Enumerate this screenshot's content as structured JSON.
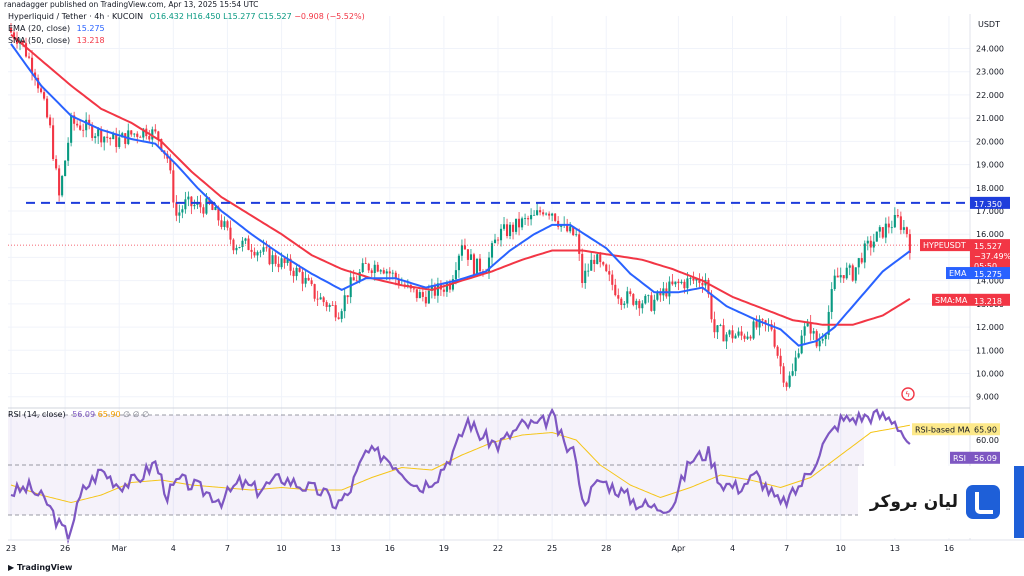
{
  "header": {
    "published": "ranadagger published on TradingView.com, Apr 13, 2025 15:54 UTC",
    "symbol": "Hyperliquid / Tether · 4h · KUCOIN",
    "open": "O16.432",
    "high": "H16.450",
    "low": "L15.277",
    "close": "C15.527",
    "change": "−0.908 (−5.52%)"
  },
  "legends": {
    "ema": {
      "label": "EMA (20, close)",
      "value": "15.275"
    },
    "sma": {
      "label": "SMA (50, close)",
      "value": "13.218"
    },
    "rsi": {
      "label": "RSI (14, close)",
      "value": "56.09",
      "extra": "65.90",
      "icons": "∅ ∅ ∅"
    }
  },
  "currency": "USDT",
  "price_labels": {
    "level": "17.350",
    "symbol": "HYPEUSDT",
    "price": "15.527",
    "pct": "−37.49%",
    "timer": "05:50",
    "ema_tag": "EMA",
    "ema_val": "15.275",
    "sma_tag": "SMA:MA",
    "sma_val": "13.218"
  },
  "rsi_labels": {
    "ma_tag": "RSI-based MA",
    "ma_val": "65.90",
    "rsi_tag": "RSI",
    "rsi_val": "56.09"
  },
  "footer": {
    "brand": "TradingView"
  },
  "watermark": {
    "text": "لیان بروکر"
  },
  "colors": {
    "up": "#089981",
    "down": "#f23645",
    "ema": "#2962ff",
    "sma": "#f23645",
    "rsi": "#7e57c2",
    "rsi_ma": "#f5c518",
    "level": "#1e3ddb"
  },
  "chart_data": [
    {
      "type": "candlestick",
      "title": "Hyperliquid / Tether · 4h · KUCOIN",
      "ylabel": "USDT",
      "ylim": [
        8.6,
        25.4
      ],
      "y_ticks": [
        "24.000",
        "23.000",
        "22.000",
        "21.000",
        "20.000",
        "19.000",
        "18.000",
        "17.000",
        "16.000",
        "15.000",
        "14.000",
        "13.000",
        "12.000",
        "11.000",
        "10.000",
        "9.000"
      ],
      "x_ticks": [
        {
          "label": "23",
          "i": 0
        },
        {
          "label": "26",
          "i": 18
        },
        {
          "label": "Mar",
          "i": 36
        },
        {
          "label": "4",
          "i": 54
        },
        {
          "label": "7",
          "i": 72
        },
        {
          "label": "10",
          "i": 90
        },
        {
          "label": "13",
          "i": 108
        },
        {
          "label": "16",
          "i": 126
        },
        {
          "label": "19",
          "i": 144
        },
        {
          "label": "22",
          "i": 162
        },
        {
          "label": "25",
          "i": 180
        },
        {
          "label": "28",
          "i": 198
        },
        {
          "label": "Apr",
          "i": 222
        },
        {
          "label": "4",
          "i": 240
        },
        {
          "label": "7",
          "i": 258
        },
        {
          "label": "10",
          "i": 276
        },
        {
          "label": "13",
          "i": 294
        },
        {
          "label": "16",
          "i": 312
        }
      ],
      "x_count": 318,
      "anchors_close": [
        [
          0,
          24.7
        ],
        [
          3,
          24.4
        ],
        [
          8,
          23.0
        ],
        [
          13,
          20.5
        ],
        [
          16,
          17.6
        ],
        [
          20,
          20.8
        ],
        [
          25,
          20.6
        ],
        [
          30,
          20.3
        ],
        [
          35,
          20.0
        ],
        [
          40,
          20.3
        ],
        [
          45,
          20.5
        ],
        [
          49,
          20.2
        ],
        [
          52,
          19.3
        ],
        [
          55,
          16.8
        ],
        [
          58,
          17.3
        ],
        [
          62,
          17.2
        ],
        [
          66,
          17.2
        ],
        [
          70,
          16.5
        ],
        [
          74,
          15.6
        ],
        [
          80,
          15.5
        ],
        [
          86,
          15.0
        ],
        [
          91,
          14.7
        ],
        [
          96,
          14.3
        ],
        [
          101,
          13.4
        ],
        [
          106,
          12.9
        ],
        [
          109,
          12.7
        ],
        [
          113,
          13.8
        ],
        [
          118,
          14.6
        ],
        [
          123,
          14.7
        ],
        [
          128,
          14.1
        ],
        [
          133,
          13.5
        ],
        [
          137,
          13.3
        ],
        [
          142,
          13.6
        ],
        [
          146,
          13.9
        ],
        [
          150,
          15.7
        ],
        [
          154,
          14.6
        ],
        [
          158,
          14.6
        ],
        [
          162,
          16.0
        ],
        [
          166,
          16.2
        ],
        [
          170,
          16.5
        ],
        [
          174,
          16.7
        ],
        [
          177,
          17.1
        ],
        [
          180,
          17.0
        ],
        [
          184,
          16.2
        ],
        [
          188,
          15.9
        ],
        [
          190,
          14.0
        ],
        [
          194,
          15.0
        ],
        [
          198,
          14.2
        ],
        [
          203,
          13.3
        ],
        [
          208,
          13.2
        ],
        [
          213,
          13.0
        ],
        [
          218,
          13.6
        ],
        [
          223,
          13.9
        ],
        [
          227,
          14.0
        ],
        [
          231,
          14.1
        ],
        [
          234,
          11.8
        ],
        [
          238,
          11.7
        ],
        [
          243,
          11.6
        ],
        [
          248,
          12.0
        ],
        [
          253,
          12.0
        ],
        [
          256,
          10.3
        ],
        [
          258,
          9.6
        ],
        [
          260,
          10.0
        ],
        [
          263,
          11.8
        ],
        [
          266,
          12.0
        ],
        [
          268,
          11.2
        ],
        [
          271,
          12.0
        ],
        [
          274,
          14.0
        ],
        [
          277,
          14.4
        ],
        [
          280,
          14.3
        ],
        [
          283,
          15.1
        ],
        [
          286,
          15.6
        ],
        [
          289,
          16.0
        ],
        [
          292,
          16.4
        ],
        [
          295,
          16.6
        ],
        [
          298,
          16.1
        ],
        [
          299,
          15.53
        ]
      ],
      "ema_anchors": [
        [
          0,
          24.2
        ],
        [
          10,
          22.4
        ],
        [
          20,
          21.1
        ],
        [
          30,
          20.5
        ],
        [
          40,
          20.1
        ],
        [
          48,
          19.9
        ],
        [
          55,
          19.0
        ],
        [
          62,
          18.0
        ],
        [
          70,
          17.0
        ],
        [
          80,
          16.0
        ],
        [
          90,
          15.1
        ],
        [
          100,
          14.3
        ],
        [
          110,
          13.6
        ],
        [
          118,
          14.1
        ],
        [
          128,
          14.1
        ],
        [
          138,
          13.7
        ],
        [
          148,
          14.0
        ],
        [
          158,
          14.4
        ],
        [
          166,
          15.3
        ],
        [
          174,
          16.0
        ],
        [
          180,
          16.4
        ],
        [
          186,
          16.4
        ],
        [
          192,
          15.9
        ],
        [
          198,
          15.4
        ],
        [
          206,
          14.3
        ],
        [
          214,
          13.5
        ],
        [
          222,
          13.5
        ],
        [
          230,
          13.7
        ],
        [
          238,
          12.9
        ],
        [
          248,
          12.3
        ],
        [
          256,
          11.9
        ],
        [
          262,
          11.2
        ],
        [
          268,
          11.4
        ],
        [
          274,
          12.0
        ],
        [
          282,
          13.2
        ],
        [
          290,
          14.4
        ],
        [
          299,
          15.275
        ]
      ],
      "sma_anchors": [
        [
          0,
          24.6
        ],
        [
          10,
          23.5
        ],
        [
          20,
          22.4
        ],
        [
          30,
          21.4
        ],
        [
          40,
          20.8
        ],
        [
          50,
          20.0
        ],
        [
          60,
          18.7
        ],
        [
          70,
          17.6
        ],
        [
          80,
          16.8
        ],
        [
          90,
          16.0
        ],
        [
          100,
          15.1
        ],
        [
          110,
          14.5
        ],
        [
          120,
          14.1
        ],
        [
          130,
          13.8
        ],
        [
          140,
          13.6
        ],
        [
          150,
          14.0
        ],
        [
          160,
          14.4
        ],
        [
          170,
          14.9
        ],
        [
          180,
          15.3
        ],
        [
          190,
          15.3
        ],
        [
          200,
          15.1
        ],
        [
          210,
          14.9
        ],
        [
          220,
          14.5
        ],
        [
          230,
          14.0
        ],
        [
          240,
          13.3
        ],
        [
          250,
          12.8
        ],
        [
          260,
          12.3
        ],
        [
          270,
          12.1
        ],
        [
          280,
          12.1
        ],
        [
          290,
          12.5
        ],
        [
          299,
          13.218
        ]
      ],
      "horizontal_level": 17.35
    },
    {
      "type": "line",
      "title": "RSI (14, close)",
      "ylim": [
        20,
        72
      ],
      "y_ticks": [
        "60.00"
      ],
      "band": [
        30,
        70
      ],
      "rsi_anchors": [
        [
          0,
          39
        ],
        [
          6,
          41
        ],
        [
          12,
          35
        ],
        [
          16,
          26
        ],
        [
          19,
          22
        ],
        [
          24,
          40
        ],
        [
          30,
          48
        ],
        [
          36,
          42
        ],
        [
          42,
          44
        ],
        [
          48,
          51
        ],
        [
          52,
          38
        ],
        [
          56,
          44
        ],
        [
          62,
          41
        ],
        [
          70,
          36
        ],
        [
          76,
          43
        ],
        [
          82,
          40
        ],
        [
          90,
          45
        ],
        [
          96,
          42
        ],
        [
          104,
          39
        ],
        [
          108,
          34
        ],
        [
          112,
          38
        ],
        [
          118,
          55
        ],
        [
          124,
          54
        ],
        [
          130,
          48
        ],
        [
          136,
          41
        ],
        [
          142,
          46
        ],
        [
          148,
          57
        ],
        [
          152,
          68
        ],
        [
          156,
          62
        ],
        [
          162,
          58
        ],
        [
          170,
          66
        ],
        [
          176,
          66
        ],
        [
          180,
          70
        ],
        [
          184,
          58
        ],
        [
          188,
          54
        ],
        [
          190,
          35
        ],
        [
          196,
          44
        ],
        [
          202,
          40
        ],
        [
          208,
          35
        ],
        [
          214,
          33
        ],
        [
          220,
          34
        ],
        [
          226,
          52
        ],
        [
          232,
          55
        ],
        [
          236,
          43
        ],
        [
          242,
          41
        ],
        [
          248,
          46
        ],
        [
          252,
          40
        ],
        [
          256,
          34
        ],
        [
          260,
          38
        ],
        [
          266,
          48
        ],
        [
          270,
          58
        ],
        [
          276,
          68
        ],
        [
          282,
          69
        ],
        [
          288,
          70
        ],
        [
          294,
          68
        ],
        [
          298,
          60
        ],
        [
          299,
          56.09
        ]
      ],
      "ma_anchors": [
        [
          0,
          42
        ],
        [
          10,
          38
        ],
        [
          20,
          35
        ],
        [
          30,
          38
        ],
        [
          40,
          43
        ],
        [
          50,
          44
        ],
        [
          60,
          42
        ],
        [
          70,
          41
        ],
        [
          80,
          40
        ],
        [
          90,
          41
        ],
        [
          100,
          40
        ],
        [
          110,
          40
        ],
        [
          120,
          45
        ],
        [
          130,
          49
        ],
        [
          140,
          48
        ],
        [
          150,
          54
        ],
        [
          160,
          59
        ],
        [
          170,
          62
        ],
        [
          180,
          63
        ],
        [
          188,
          60
        ],
        [
          196,
          50
        ],
        [
          206,
          42
        ],
        [
          216,
          37
        ],
        [
          226,
          41
        ],
        [
          236,
          46
        ],
        [
          246,
          44
        ],
        [
          256,
          41
        ],
        [
          266,
          45
        ],
        [
          276,
          54
        ],
        [
          286,
          63
        ],
        [
          299,
          65.9
        ]
      ]
    }
  ]
}
